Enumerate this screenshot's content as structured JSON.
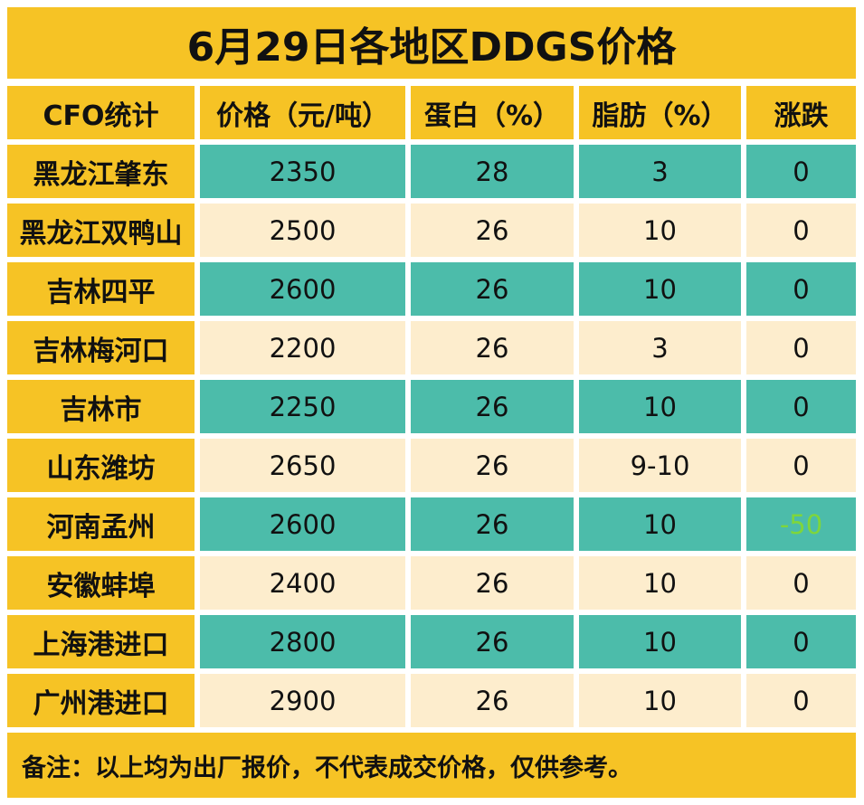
{
  "chart_data": {
    "type": "table",
    "title": "6月29日各地区DDGS价格",
    "columns": [
      "CFO统计",
      "价格（元/吨）",
      "蛋白（%）",
      "脂肪（%）",
      "涨跌"
    ],
    "rows": [
      {
        "region": "黑龙江肇东",
        "price": "2350",
        "protein": "28",
        "fat": "3",
        "change": "0",
        "style": "teal"
      },
      {
        "region": "黑龙江双鸭山",
        "price": "2500",
        "protein": "26",
        "fat": "10",
        "change": "0",
        "style": "cream"
      },
      {
        "region": "吉林四平",
        "price": "2600",
        "protein": "26",
        "fat": "10",
        "change": "0",
        "style": "teal"
      },
      {
        "region": "吉林梅河口",
        "price": "2200",
        "protein": "26",
        "fat": "3",
        "change": "0",
        "style": "cream"
      },
      {
        "region": "吉林市",
        "price": "2250",
        "protein": "26",
        "fat": "10",
        "change": "0",
        "style": "teal"
      },
      {
        "region": "山东潍坊",
        "price": "2650",
        "protein": "26",
        "fat": "9-10",
        "change": "0",
        "style": "cream"
      },
      {
        "region": "河南孟州",
        "price": "2600",
        "protein": "26",
        "fat": "10",
        "change": "-50",
        "style": "teal",
        "change_color": "#7fd63a"
      },
      {
        "region": "安徽蚌埠",
        "price": "2400",
        "protein": "26",
        "fat": "10",
        "change": "0",
        "style": "cream"
      },
      {
        "region": "上海港进口",
        "price": "2800",
        "protein": "26",
        "fat": "10",
        "change": "0",
        "style": "teal"
      },
      {
        "region": "广州港进口",
        "price": "2900",
        "protein": "26",
        "fat": "10",
        "change": "0",
        "style": "cream"
      }
    ],
    "note": "备注：以上均为出厂报价，不代表成交价格，仅供参考。"
  },
  "colors": {
    "yellow": "#f6c325",
    "teal": "#4cbcaa",
    "cream": "#fdedcd",
    "change_down": "#7fd63a"
  }
}
